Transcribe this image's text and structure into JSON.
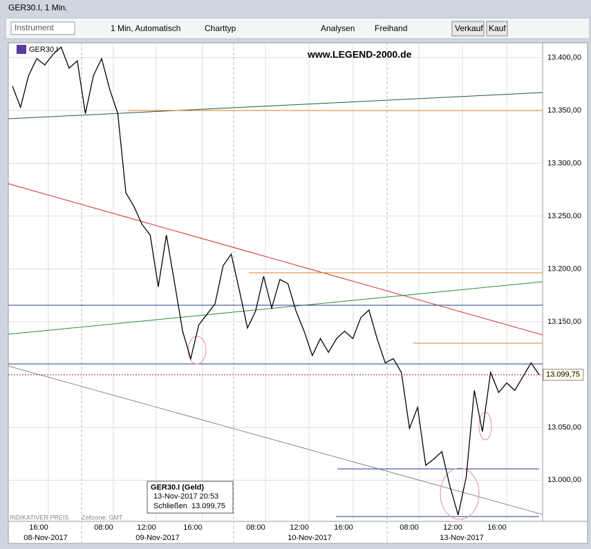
{
  "window_title": "GER30.I, 1 Min.",
  "toolbar": {
    "instrument_placeholder": "Instrument",
    "interval": "1 Min,  Automatisch",
    "charttype": "Charttyp",
    "analysis": "Analysen",
    "freehand": "Freihand",
    "sell": "Verkauf",
    "buy": "Kauf"
  },
  "chart_data": {
    "type": "line",
    "symbol": "GER30.I",
    "watermark": "www.LEGEND-2000.de",
    "series": [
      {
        "name": "GER30.I",
        "color": "#000000",
        "values": [
          13373,
          13353,
          13383,
          13399,
          13393,
          13403,
          13410,
          13390,
          13397,
          13347,
          13383,
          13399,
          13370,
          13347,
          13272,
          13259,
          13242,
          13232,
          13183,
          13232,
          13187,
          13141,
          13115,
          13147,
          13157,
          13167,
          13203,
          13214,
          13180,
          13144,
          13160,
          13193,
          13163,
          13190,
          13186,
          13160,
          13141,
          13118,
          13134,
          13121,
          13134,
          13141,
          13134,
          13154,
          13161,
          13134,
          13111,
          13115,
          13102,
          13049,
          13069,
          13014,
          13020,
          13027,
          12994,
          12967,
          13003,
          13085,
          13046,
          13102,
          13083,
          13092,
          13085,
          13098,
          13111,
          13099.75
        ]
      }
    ],
    "ylim": [
      12961,
      13414
    ],
    "yticks": [
      {
        "value": 13000,
        "label": "13.000,00"
      },
      {
        "value": 13050,
        "label": "13.050,00"
      },
      {
        "value": 13150,
        "label": "13.150,00"
      },
      {
        "value": 13200,
        "label": "13.200,00"
      },
      {
        "value": 13250,
        "label": "13.250,00"
      },
      {
        "value": 13300,
        "label": "13.300,00"
      },
      {
        "value": 13350,
        "label": "13.350,00"
      },
      {
        "value": 13400,
        "label": "13.400,00"
      }
    ],
    "last_price": {
      "value": 13099.75,
      "label": "13.099,75"
    },
    "time_labels": [
      "16:00",
      "08:00",
      "12:00",
      "16:00",
      "08:00",
      "12:00",
      "16:00",
      "08:00",
      "12:00",
      "16:00"
    ],
    "date_labels": [
      "08-Nov-2017",
      "09-Nov-2017",
      "10-Nov-2017",
      "13-Nov-2017"
    ],
    "info": {
      "title": "GER30.I (Geld)",
      "time": "13-Nov-2017 20:53",
      "close_label": "Schließen",
      "close_value": "13.099,75"
    },
    "footer": {
      "indicative": "INDIKATIVER PREIS",
      "timezone": "Zeitzone: GMT"
    }
  }
}
